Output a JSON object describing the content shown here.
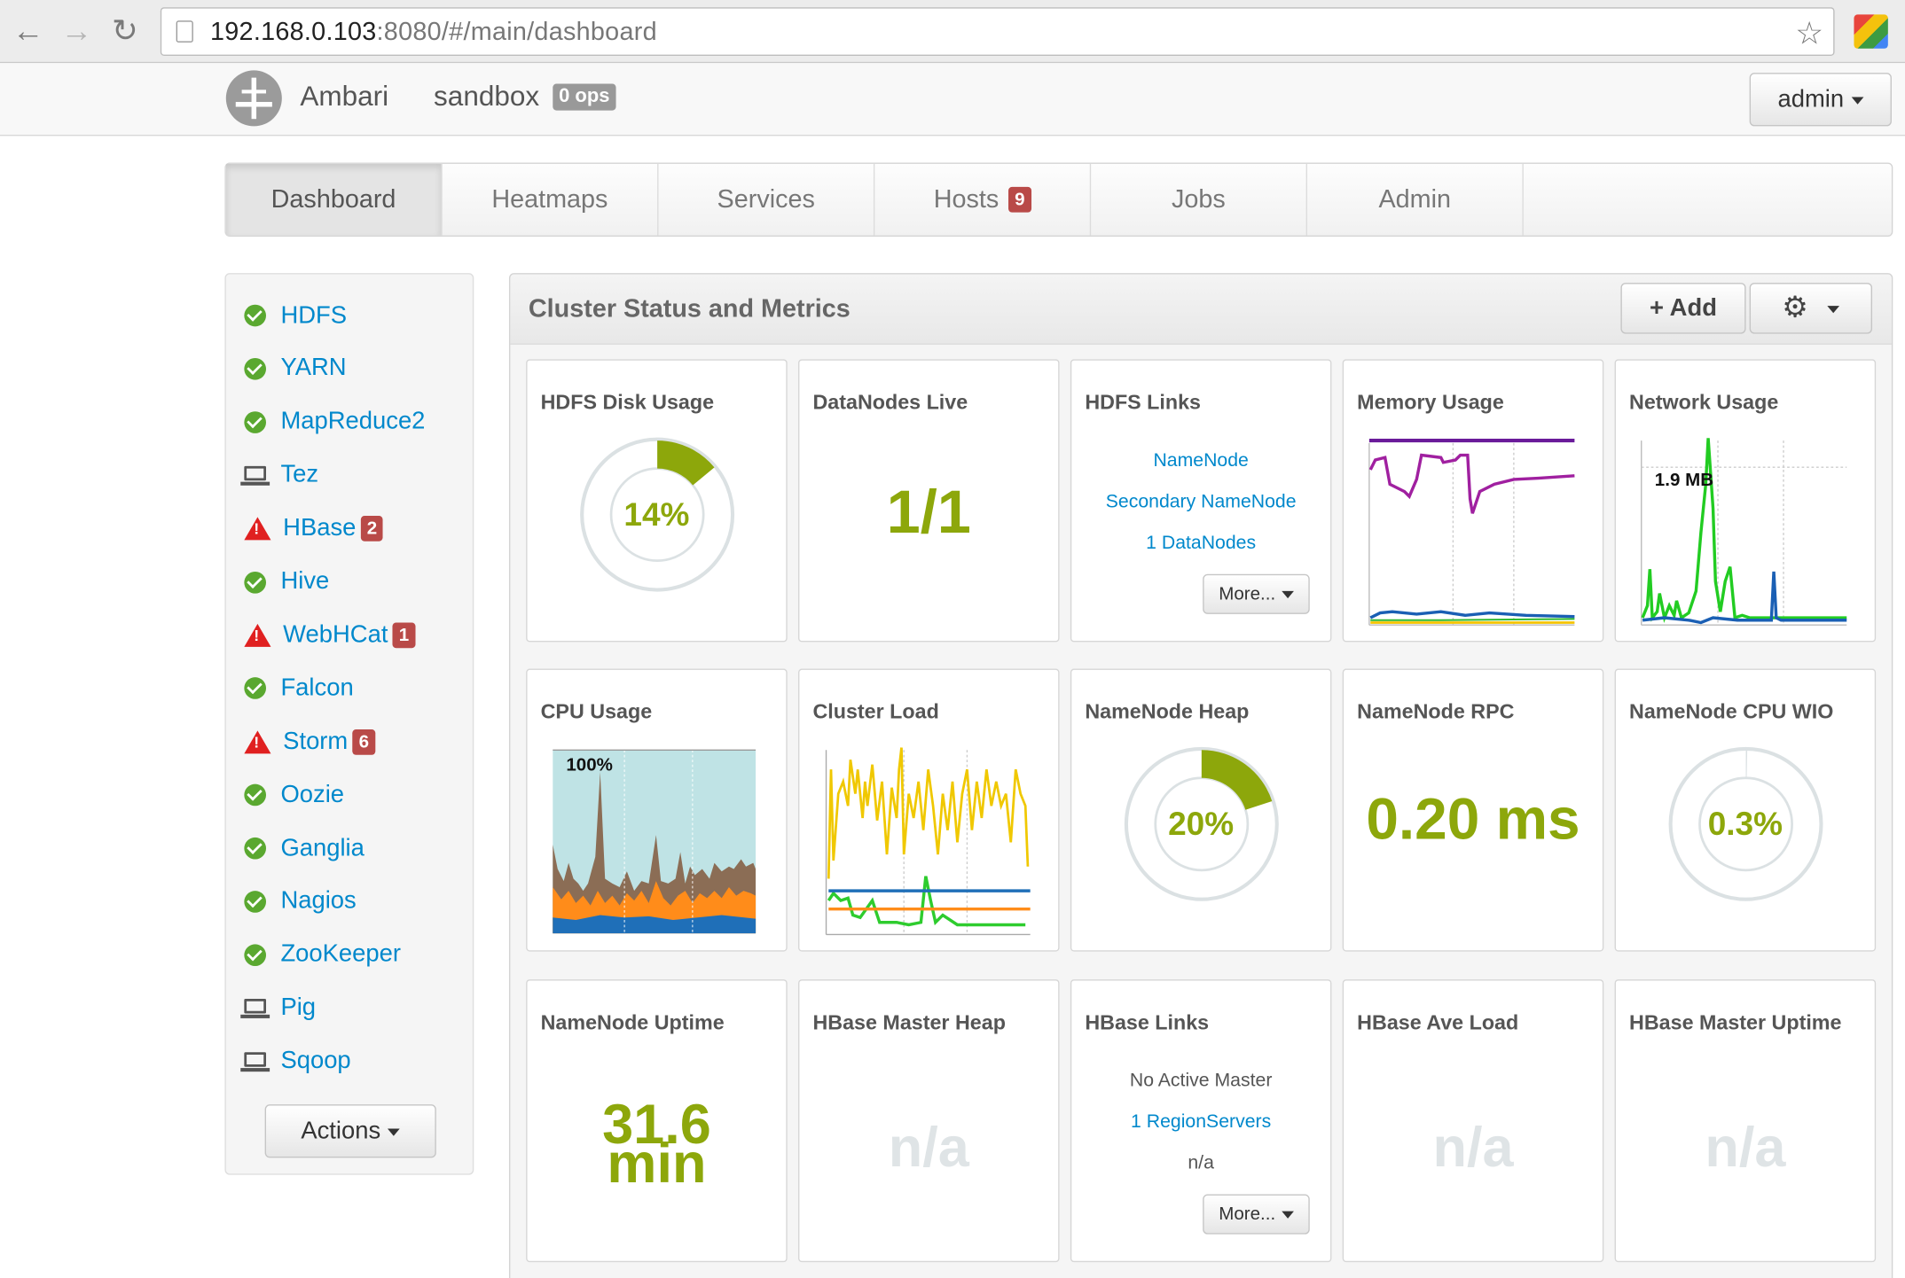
{
  "browser": {
    "url_host": "192.168.0.103",
    "url_rest": ":8080/#/main/dashboard"
  },
  "app": {
    "brand": "Ambari",
    "cluster_name": "sandbox",
    "ops_badge": "0 ops",
    "user": "admin"
  },
  "tabs": [
    {
      "label": "Dashboard",
      "active": true
    },
    {
      "label": "Heatmaps"
    },
    {
      "label": "Services"
    },
    {
      "label": "Hosts",
      "badge": "9"
    },
    {
      "label": "Jobs"
    },
    {
      "label": "Admin"
    }
  ],
  "services": [
    {
      "label": "HDFS",
      "status": "ok"
    },
    {
      "label": "YARN",
      "status": "ok"
    },
    {
      "label": "MapReduce2",
      "status": "ok"
    },
    {
      "label": "Tez",
      "status": "client"
    },
    {
      "label": "HBase",
      "status": "alert",
      "badge": "2"
    },
    {
      "label": "Hive",
      "status": "ok"
    },
    {
      "label": "WebHCat",
      "status": "alert",
      "badge": "1"
    },
    {
      "label": "Falcon",
      "status": "ok"
    },
    {
      "label": "Storm",
      "status": "alert",
      "badge": "6"
    },
    {
      "label": "Oozie",
      "status": "ok"
    },
    {
      "label": "Ganglia",
      "status": "ok"
    },
    {
      "label": "Nagios",
      "status": "ok"
    },
    {
      "label": "ZooKeeper",
      "status": "ok"
    },
    {
      "label": "Pig",
      "status": "client"
    },
    {
      "label": "Sqoop",
      "status": "client"
    }
  ],
  "actions_label": "Actions",
  "panel": {
    "title": "Cluster Status and Metrics",
    "add_label": "Add"
  },
  "widgets": {
    "hdfs_disk": {
      "title": "HDFS Disk Usage",
      "value": "14%",
      "fraction": 0.14
    },
    "datanodes": {
      "title": "DataNodes Live",
      "value": "1/1"
    },
    "hdfs_links": {
      "title": "HDFS Links",
      "link1": "NameNode",
      "link2": "Secondary NameNode",
      "link3": "1 DataNodes",
      "more": "More..."
    },
    "memory": {
      "title": "Memory Usage"
    },
    "network": {
      "title": "Network Usage",
      "label": "1.9 MB"
    },
    "cpu": {
      "title": "CPU Usage",
      "label": "100%"
    },
    "load": {
      "title": "Cluster Load"
    },
    "nn_heap": {
      "title": "NameNode Heap",
      "value": "20%",
      "fraction": 0.2
    },
    "nn_rpc": {
      "title": "NameNode RPC",
      "value": "0.20 ms"
    },
    "nn_cpu": {
      "title": "NameNode CPU WIO",
      "value": "0.3%",
      "fraction": 0.003
    },
    "nn_uptime": {
      "title": "NameNode Uptime",
      "value_line1": "31.6",
      "value_line2": "min"
    },
    "hbase_heap": {
      "title": "HBase Master Heap",
      "value": "n/a"
    },
    "hbase_links": {
      "title": "HBase Links",
      "line1": "No Active Master",
      "link": "1 RegionServers",
      "line3": "n/a",
      "more": "More..."
    },
    "hbase_load": {
      "title": "HBase Ave Load",
      "value": "n/a"
    },
    "hbase_uptime": {
      "title": "HBase Master Uptime",
      "value": "n/a"
    }
  },
  "colors": {
    "accent_green": "#8da70b",
    "link_blue": "#0088cc",
    "badge_red": "#b94a48",
    "ok_green": "#5aa830",
    "alert_red": "#e02020"
  }
}
